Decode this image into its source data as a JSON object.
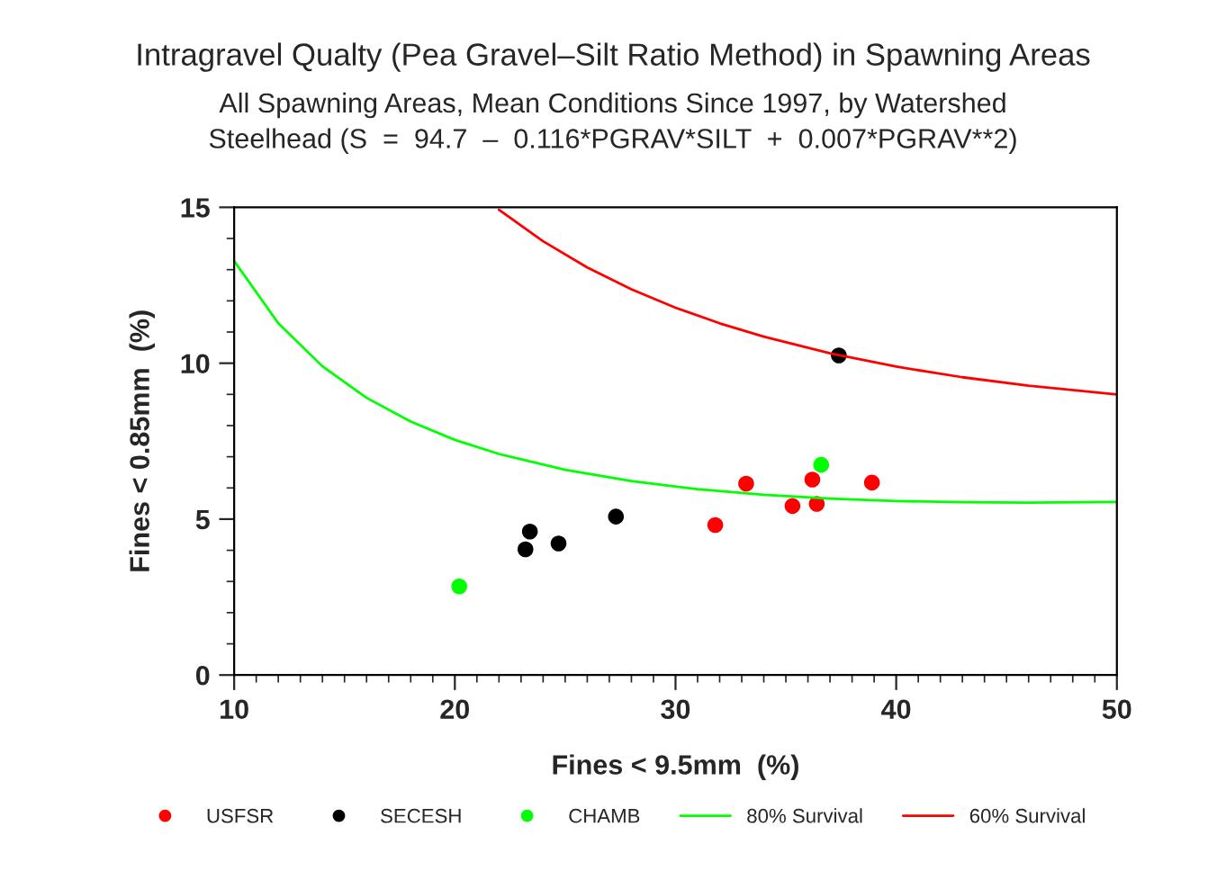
{
  "chart_data": {
    "type": "scatter",
    "title": "Intragravel Qualty (Pea Gravel–Silt Ratio Method) in Spawning Areas",
    "subtitle": "All Spawning Areas, Mean Conditions Since 1997, by Watershed\nSteelhead (S  =  94.7  –  0.116*PGRAV*SILT  +  0.007*PGRAV**2)",
    "xlabel": "Fines < 9.5mm  (%)",
    "ylabel": "Fines < 0.85mm  (%)",
    "xlim": [
      10,
      50
    ],
    "xticks": [
      10,
      20,
      30,
      40,
      50
    ],
    "ylim": [
      0,
      15
    ],
    "yticks": [
      0,
      5,
      10,
      15
    ],
    "grid": false,
    "legend": "bottom",
    "series": [
      {
        "name": "USFSR",
        "marker": "circle",
        "color": "#ff0000",
        "x": [
          31.8,
          33.2,
          35.3,
          36.2,
          36.4,
          38.9
        ],
        "values": [
          4.81,
          6.14,
          5.42,
          6.27,
          5.49,
          6.17
        ]
      },
      {
        "name": "SECESH",
        "marker": "circle",
        "color": "#000000",
        "x": [
          23.2,
          23.4,
          24.7,
          27.3,
          37.4
        ],
        "values": [
          4.03,
          4.6,
          4.22,
          5.08,
          10.25
        ]
      },
      {
        "name": "CHAMB",
        "marker": "circle",
        "color": "#00ff00",
        "x": [
          20.2,
          36.6
        ],
        "values": [
          2.84,
          6.74
        ]
      },
      {
        "name": "80% Survival",
        "type": "line",
        "color": "#00ff00",
        "line_style": "solid",
        "x": [
          10,
          12,
          14,
          16,
          18,
          20,
          22,
          25,
          28,
          31,
          34,
          37,
          40,
          43,
          46,
          50
        ],
        "values": [
          13.28,
          11.28,
          9.9,
          8.89,
          8.13,
          7.54,
          7.09,
          6.58,
          6.22,
          5.96,
          5.78,
          5.66,
          5.58,
          5.54,
          5.53,
          5.55
        ]
      },
      {
        "name": "60% Survival",
        "type": "line",
        "color": "#ff0000",
        "line_style": "solid",
        "x": [
          22,
          24,
          26,
          28,
          30,
          32,
          34,
          37,
          40,
          43,
          46,
          50
        ],
        "values": [
          14.92,
          13.91,
          13.07,
          12.37,
          11.78,
          11.28,
          10.85,
          10.32,
          9.89,
          9.55,
          9.28,
          9.0
        ]
      }
    ]
  }
}
